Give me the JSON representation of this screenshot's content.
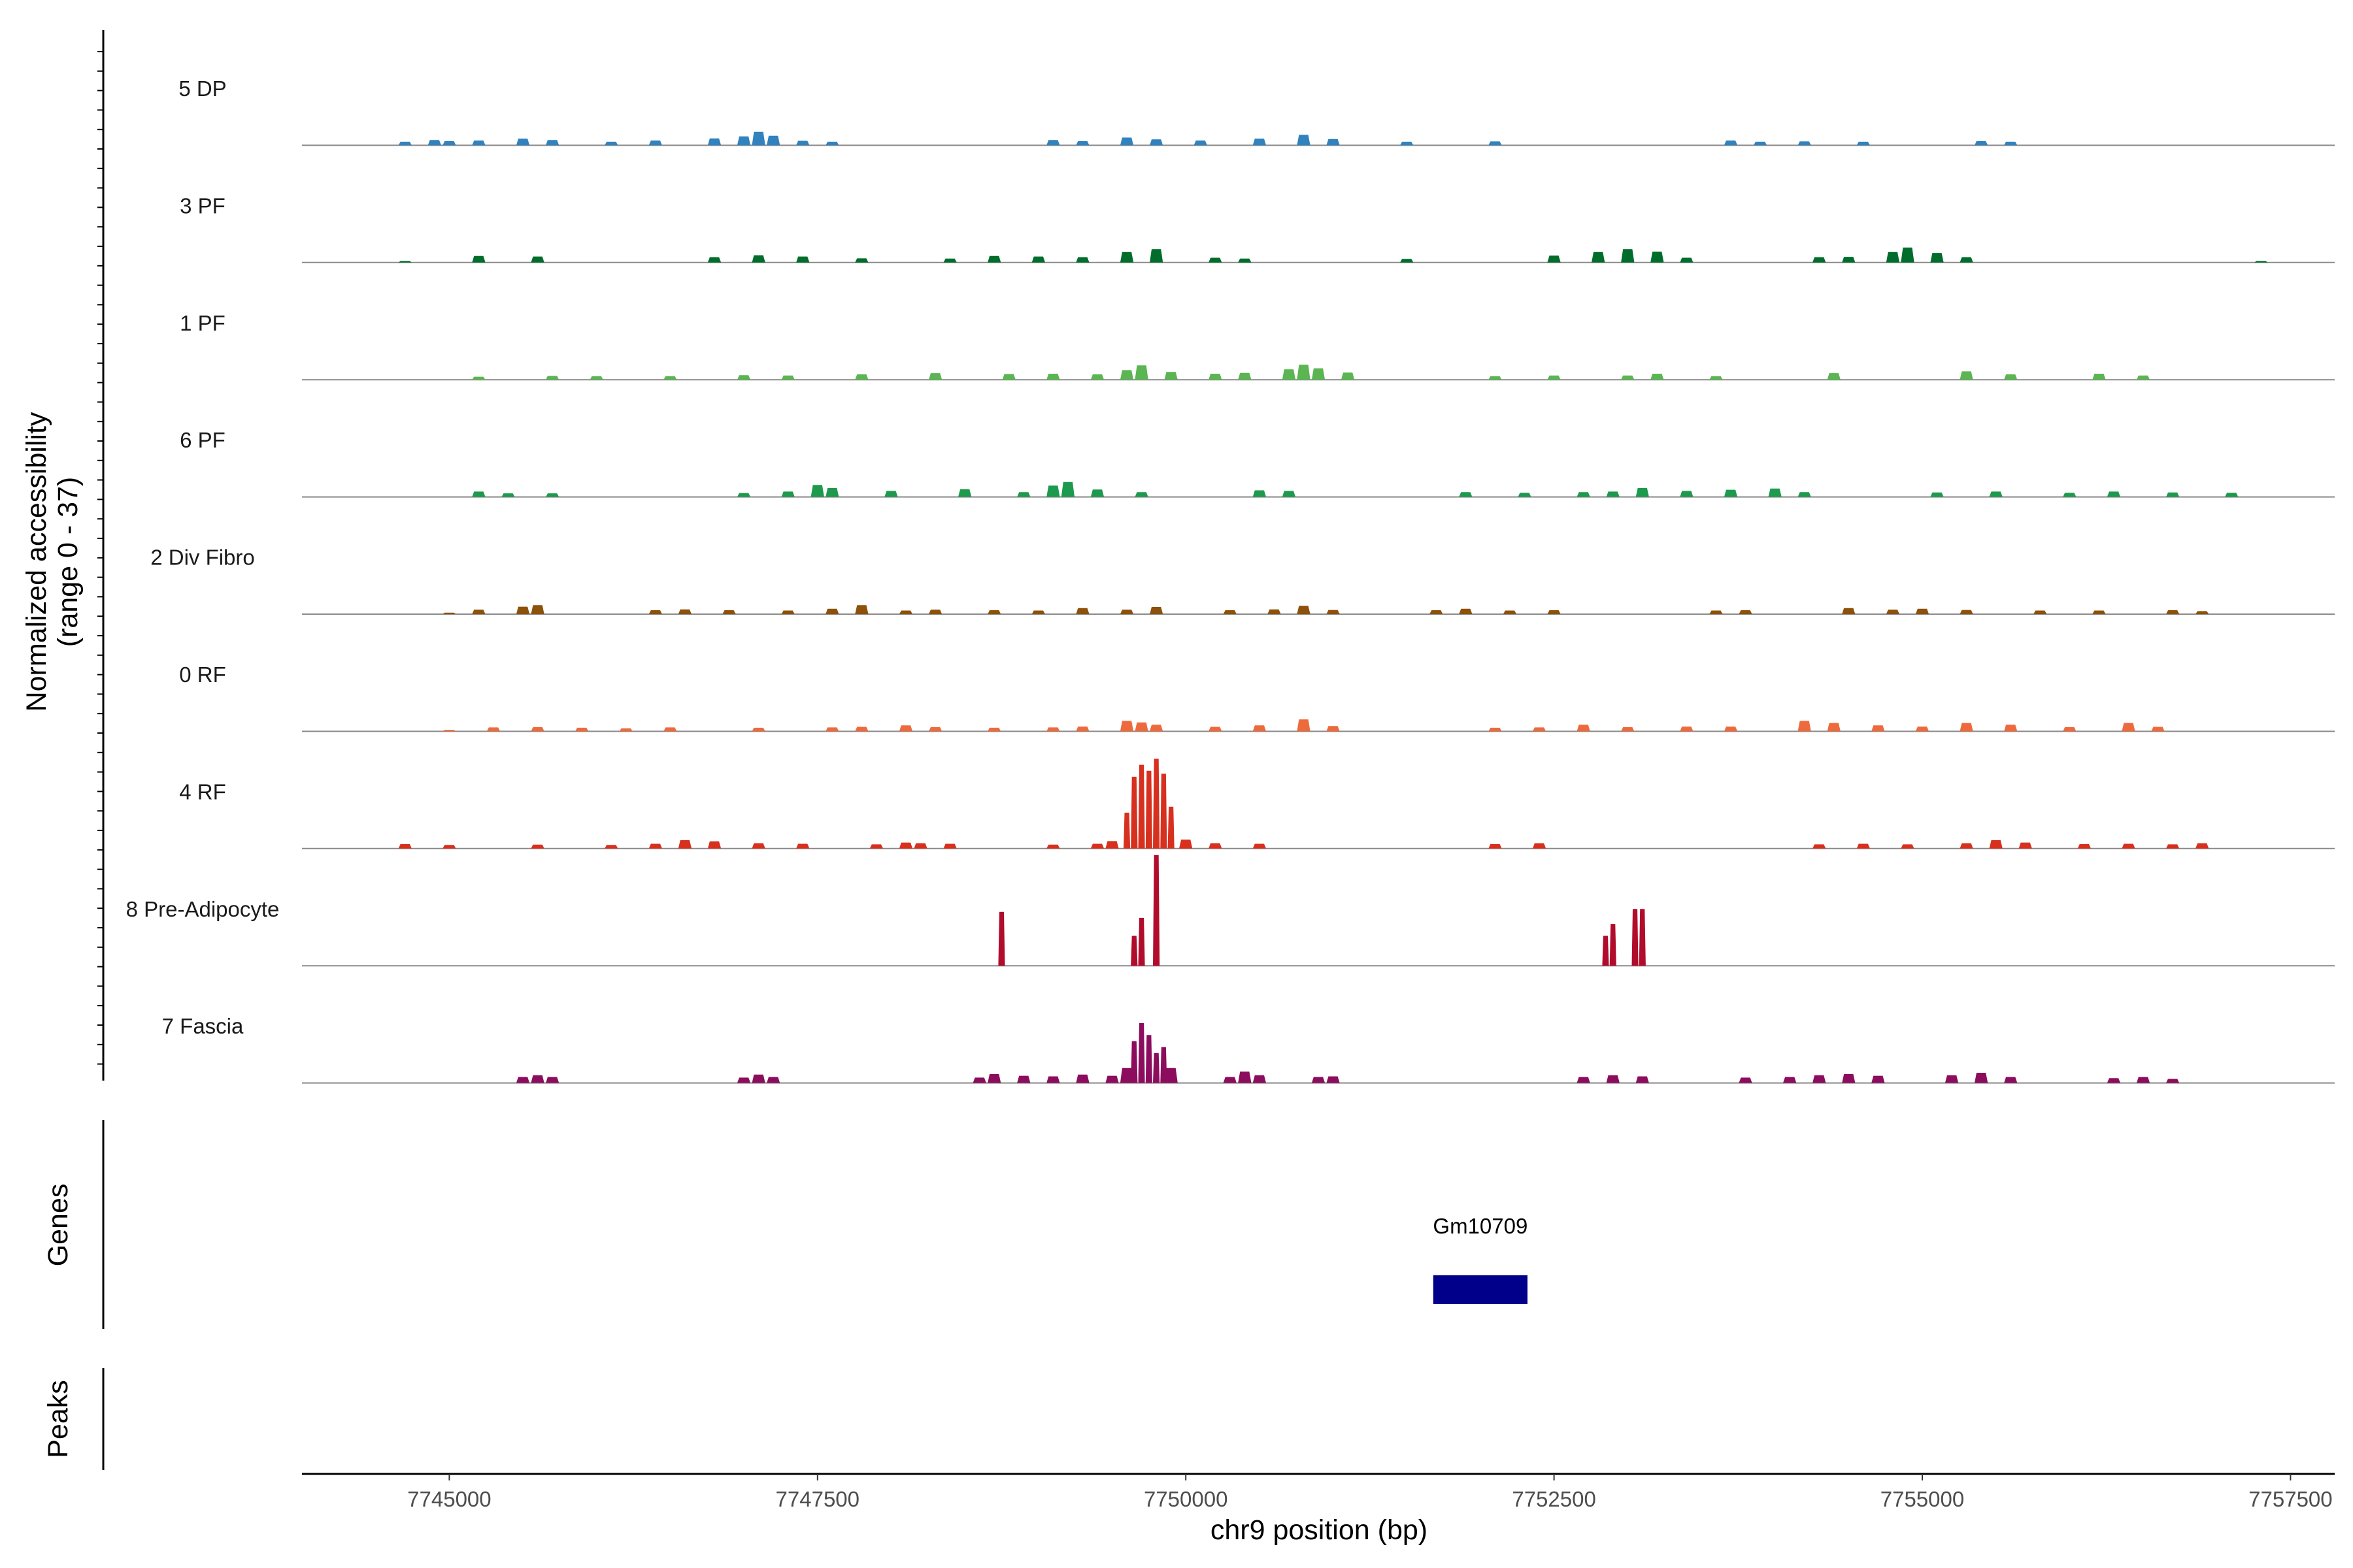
{
  "chart_data": {
    "type": "area",
    "xlabel": "chr9 position (bp)",
    "ylabel_line1": "Normalized accessibility",
    "ylabel_line2": "(range 0 - 37)",
    "y_range": [
      0,
      37
    ],
    "xlim": [
      7744000,
      7757800
    ],
    "x_ticks": [
      7745000,
      7747500,
      7750000,
      7752500,
      7755000,
      7757500
    ],
    "x_tick_labels": [
      "7745000",
      "7747500",
      "7750000",
      "7752500",
      "7755000",
      "7757500"
    ],
    "series": [
      {
        "name": "5 DP",
        "color": "#3182bd",
        "x": [
          7744700,
          7744900,
          7745000,
          7745200,
          7745500,
          7745700,
          7746100,
          7746400,
          7746800,
          7747000,
          7747100,
          7747200,
          7747400,
          7747600,
          7749100,
          7749300,
          7749600,
          7749800,
          7750100,
          7750500,
          7750800,
          7751000,
          7751500,
          7752100,
          7753700,
          7753900,
          7754200,
          7754600,
          7755400,
          7755600
        ],
        "values": [
          1.2,
          1.8,
          1.4,
          1.6,
          2.2,
          1.8,
          1.2,
          1.6,
          2.3,
          3.0,
          4.5,
          3.2,
          1.5,
          1.2,
          1.8,
          1.4,
          2.6,
          2.0,
          1.6,
          2.2,
          3.5,
          2.1,
          1.2,
          1.3,
          1.6,
          1.2,
          1.3,
          1.2,
          1.4,
          1.2
        ]
      },
      {
        "name": "3 PF",
        "color": "#006d2c",
        "x": [
          7744700,
          7745200,
          7745600,
          7746800,
          7747100,
          7747400,
          7747800,
          7748400,
          7748700,
          7749000,
          7749300,
          7749600,
          7749800,
          7750200,
          7750400,
          7751500,
          7752500,
          7752800,
          7753000,
          7753200,
          7753400,
          7754300,
          7754500,
          7754800,
          7754900,
          7755100,
          7755300,
          7757300
        ],
        "values": [
          0.5,
          2.2,
          2.0,
          1.8,
          2.4,
          2.0,
          1.4,
          1.3,
          2.2,
          2.0,
          1.8,
          3.5,
          4.5,
          1.6,
          1.3,
          1.2,
          2.3,
          3.5,
          4.5,
          3.6,
          1.6,
          1.8,
          1.9,
          3.5,
          5.0,
          3.2,
          1.8,
          0.5
        ]
      },
      {
        "name": "1 PF",
        "color": "#5ab552",
        "x": [
          7745200,
          7745700,
          7746000,
          7746500,
          7747000,
          7747300,
          7747800,
          7748300,
          7748800,
          7749100,
          7749400,
          7749600,
          7749700,
          7749900,
          7750200,
          7750400,
          7750700,
          7750800,
          7750900,
          7751100,
          7752100,
          7752500,
          7753000,
          7753200,
          7753600,
          7754400,
          7755300,
          7755600,
          7756200,
          7756500
        ],
        "values": [
          1.0,
          1.3,
          1.2,
          1.2,
          1.5,
          1.4,
          1.8,
          2.2,
          1.9,
          2.0,
          1.8,
          3.2,
          4.8,
          2.6,
          2.0,
          2.3,
          3.5,
          5.0,
          3.8,
          2.4,
          1.2,
          1.4,
          1.4,
          2.0,
          1.2,
          2.2,
          2.8,
          1.8,
          2.0,
          1.4
        ]
      },
      {
        "name": "6 PF",
        "color": "#1d9a4e",
        "x": [
          7745200,
          7745400,
          7745700,
          7747000,
          7747300,
          7747500,
          7747600,
          7748000,
          7748500,
          7748900,
          7749100,
          7749200,
          7749400,
          7749700,
          7750500,
          7750700,
          7751900,
          7752300,
          7752700,
          7752900,
          7753100,
          7753400,
          7753700,
          7754000,
          7754200,
          7755100,
          7755500,
          7756000,
          7756300,
          7756700,
          7757100
        ],
        "values": [
          1.8,
          1.2,
          1.2,
          1.3,
          1.8,
          4.0,
          3.0,
          2.0,
          2.6,
          1.6,
          3.8,
          5.0,
          2.5,
          1.6,
          2.2,
          2.0,
          1.6,
          1.4,
          1.6,
          1.8,
          3.0,
          2.0,
          2.4,
          2.8,
          1.6,
          1.5,
          1.8,
          1.4,
          1.8,
          1.5,
          1.4
        ]
      },
      {
        "name": "2 Div Fibro",
        "color": "#8c510a",
        "x": [
          7745000,
          7745200,
          7745500,
          7745600,
          7746400,
          7746600,
          7746900,
          7747300,
          7747600,
          7747800,
          7748100,
          7748300,
          7748700,
          7749000,
          7749300,
          7749600,
          7749800,
          7750300,
          7750600,
          7750800,
          7751000,
          7751700,
          7751900,
          7752200,
          7752500,
          7753600,
          7753800,
          7754500,
          7754800,
          7755000,
          7755300,
          7755800,
          7756200,
          7756700,
          7756900
        ],
        "values": [
          0.5,
          1.5,
          2.5,
          3.0,
          1.3,
          1.6,
          1.3,
          1.2,
          1.8,
          3.0,
          1.2,
          1.5,
          1.3,
          1.2,
          2.0,
          1.5,
          2.4,
          1.3,
          1.6,
          2.8,
          1.4,
          1.3,
          1.8,
          1.2,
          1.3,
          1.2,
          1.3,
          2.0,
          1.5,
          1.8,
          1.4,
          1.2,
          1.2,
          1.3,
          1.0
        ]
      },
      {
        "name": "0 RF",
        "color": "#ee6a3c",
        "x": [
          7745000,
          7745300,
          7745600,
          7745900,
          7746200,
          7746500,
          7747100,
          7747600,
          7747800,
          7748100,
          7748300,
          7748700,
          7749100,
          7749300,
          7749600,
          7749700,
          7749800,
          7750200,
          7750500,
          7750800,
          7751000,
          7752100,
          7752400,
          7752700,
          7753000,
          7753400,
          7753700,
          7754200,
          7754400,
          7754700,
          7755000,
          7755300,
          7755600,
          7756000,
          7756400,
          7756600
        ],
        "values": [
          0.5,
          1.3,
          1.4,
          1.2,
          1.0,
          1.3,
          1.2,
          1.3,
          1.5,
          2.0,
          1.4,
          1.2,
          1.3,
          1.6,
          3.5,
          3.0,
          2.2,
          1.5,
          2.0,
          4.0,
          1.8,
          1.2,
          1.3,
          2.2,
          1.4,
          1.6,
          1.6,
          3.5,
          2.8,
          2.0,
          1.6,
          2.8,
          2.2,
          1.4,
          2.8,
          1.5
        ]
      },
      {
        "name": "4 RF",
        "color": "#d7301f",
        "x": [
          7744700,
          7745000,
          7745600,
          7746100,
          7746400,
          7746600,
          7746800,
          7747100,
          7747400,
          7747900,
          7748100,
          7748200,
          7748400,
          7749100,
          7749400,
          7749500,
          7749600,
          7749650,
          7749700,
          7749750,
          7749800,
          7749850,
          7749900,
          7750000,
          7750200,
          7750500,
          7752100,
          7752400,
          7754300,
          7754600,
          7754900,
          7755300,
          7755500,
          7755700,
          7756100,
          7756400,
          7756700,
          7756900
        ],
        "values": [
          1.5,
          1.2,
          1.3,
          1.2,
          1.6,
          2.8,
          2.4,
          1.8,
          1.6,
          1.4,
          2.0,
          1.8,
          1.6,
          1.3,
          1.6,
          2.5,
          12.0,
          24.0,
          28.0,
          26.0,
          30.0,
          25.0,
          14.0,
          3.0,
          1.8,
          1.6,
          1.5,
          1.8,
          1.4,
          1.6,
          1.4,
          1.8,
          2.8,
          2.0,
          1.5,
          1.6,
          1.4,
          1.8
        ]
      },
      {
        "name": "8 Pre-Adipocyte",
        "color": "#b10c2c",
        "x": [
          7748700,
          7748750,
          7748800,
          7749600,
          7749650,
          7749700,
          7749750,
          7749800,
          7749850,
          7752800,
          7752850,
          7752900,
          7753000,
          7753050,
          7753100,
          7753150
        ],
        "values": [
          0,
          18,
          0,
          0,
          10,
          16,
          0,
          37,
          0,
          0,
          10,
          14,
          0,
          19,
          19,
          0
        ]
      },
      {
        "name": "7 Fascia",
        "color": "#8c0d5e",
        "x": [
          7745500,
          7745600,
          7745700,
          7747000,
          7747100,
          7747200,
          7748600,
          7748700,
          7748900,
          7749100,
          7749300,
          7749500,
          7749600,
          7749650,
          7749700,
          7749750,
          7749800,
          7749850,
          7749900,
          7750300,
          7750400,
          7750500,
          7750900,
          7751000,
          7752700,
          7752900,
          7753100,
          7753800,
          7754100,
          7754300,
          7754500,
          7754700,
          7755200,
          7755400,
          7755600,
          7756300,
          7756500,
          7756700
        ],
        "values": [
          2.0,
          2.6,
          2.0,
          1.8,
          2.8,
          2.0,
          1.8,
          3.0,
          2.4,
          2.2,
          2.8,
          2.4,
          5.0,
          14.0,
          20.0,
          16.0,
          10.0,
          12.0,
          5.0,
          2.0,
          3.8,
          2.6,
          2.0,
          2.2,
          2.0,
          2.6,
          2.2,
          1.8,
          2.0,
          2.6,
          3.0,
          2.4,
          2.6,
          3.4,
          2.0,
          1.6,
          2.0,
          1.4
        ]
      }
    ],
    "genes": [
      {
        "name": "Gm10709",
        "start": 7751680,
        "end": 7752320,
        "color": "#00008b"
      }
    ],
    "genes_panel_label": "Genes",
    "peaks_panel_label": "Peaks",
    "grid": false
  }
}
